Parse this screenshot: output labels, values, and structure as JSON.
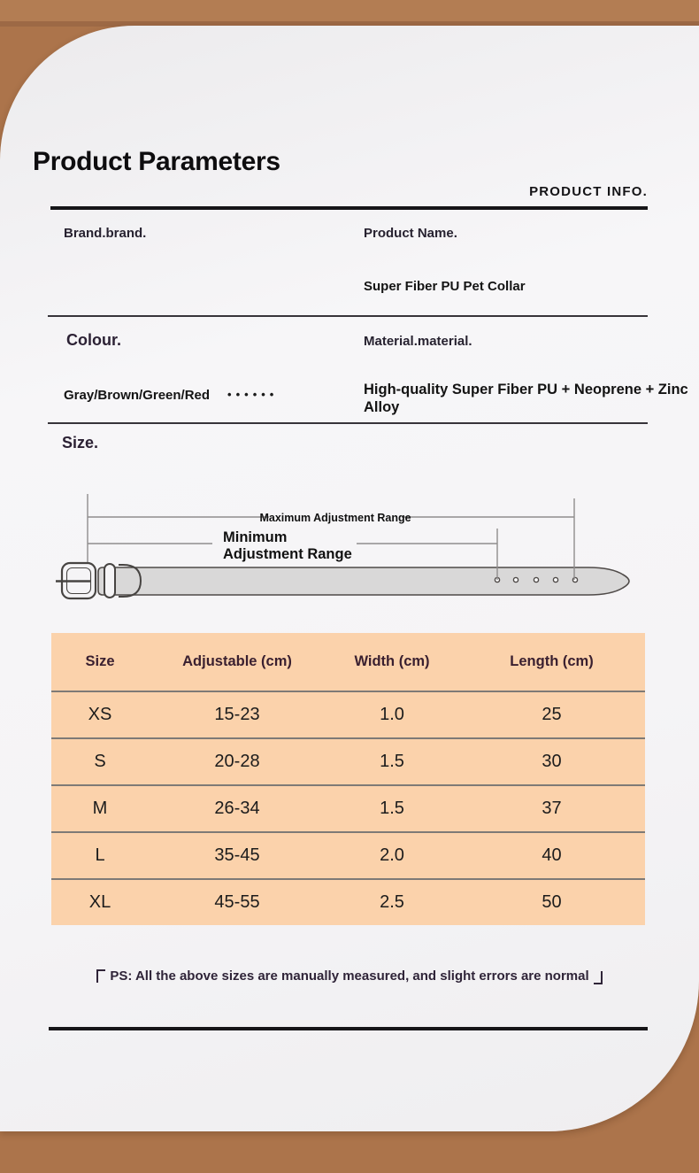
{
  "theme": {
    "background_brown": "#ac744b",
    "banner_brown": "#b37d53",
    "seam_brown": "#9d6945",
    "card_white": "#f5f4f6",
    "table_peach": "#fbd2ab",
    "table_header_text": "#3a2030",
    "belt_fill": "#d9d8d8",
    "belt_stroke": "#4f4a48"
  },
  "header": {
    "title": "Product Parameters",
    "right_label": "PRODUCT INFO."
  },
  "info": {
    "brand_label": "Brand.brand.",
    "product_name_label": "Product Name.",
    "product_name_value": "Super Fiber PU Pet Collar",
    "colour_label": "Colour.",
    "colour_value": "Gray/Brown/Green/Red",
    "colour_dots": "••••••",
    "material_label": "Material.material.",
    "material_value": "High-quality Super Fiber PU + Neoprene + Zinc Alloy"
  },
  "size_section": {
    "heading": "Size.",
    "diagram_labels": {
      "max_label": "Maximum Adjustment Range",
      "min_label_line1": "Minimum",
      "min_label_line2": "Adjustment Range"
    }
  },
  "size_table": {
    "columns": [
      "Size",
      "Adjustable (cm)",
      "Width (cm)",
      "Length (cm)"
    ],
    "rows": [
      [
        "XS",
        "15-23",
        "1.0",
        "25"
      ],
      [
        "S",
        "20-28",
        "1.5",
        "30"
      ],
      [
        "M",
        "26-34",
        "1.5",
        "37"
      ],
      [
        "L",
        "35-45",
        "2.0",
        "40"
      ],
      [
        "XL",
        "45-55",
        "2.5",
        "50"
      ]
    ]
  },
  "footnote": {
    "open_bracket": "「",
    "text": "PS: All the above sizes are manually measured, and slight errors are normal",
    "close_bracket": "」"
  }
}
